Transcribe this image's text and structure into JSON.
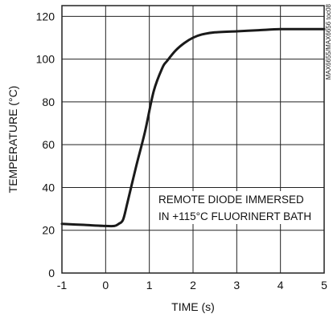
{
  "chart_data": {
    "type": "line",
    "title": "",
    "xlabel": "TIME (s)",
    "ylabel": "TEMPERATURE (°C)",
    "xlim": [
      -1,
      5
    ],
    "ylim": [
      0,
      125
    ],
    "x_ticks": [
      -1,
      0,
      1,
      2,
      3,
      4,
      5
    ],
    "y_ticks": [
      0,
      20,
      40,
      60,
      80,
      100,
      120
    ],
    "grid": true,
    "series": [
      {
        "x": [
          -1,
          -0.5,
          0,
          0.2,
          0.3,
          0.4,
          0.5,
          0.7,
          0.9,
          1.1,
          1.3,
          1.4,
          1.6,
          1.8,
          2.0,
          2.2,
          2.5,
          3.0,
          3.5,
          4.0,
          4.5,
          5.0
        ],
        "y": [
          23,
          22.5,
          22,
          22,
          23,
          25,
          33,
          50,
          66,
          85,
          96,
          99,
          104,
          107.5,
          110,
          111.5,
          112.5,
          113,
          113.5,
          114,
          114,
          114
        ]
      }
    ],
    "annotations": [
      "REMOTE DIODE IMMERSED",
      "IN +115°C FLUORINERT BATH"
    ]
  },
  "watermark": "MAX6655/MAX6656 toc08",
  "colors": {
    "line": "#1a1a1a",
    "grid": "#222222",
    "background": "#ffffff"
  }
}
